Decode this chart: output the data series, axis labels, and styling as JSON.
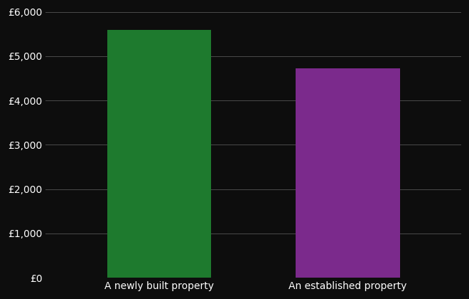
{
  "categories": [
    "A newly built property",
    "An established property"
  ],
  "values": [
    5600,
    4720
  ],
  "bar_colors": [
    "#1e7a2e",
    "#7b2a8c"
  ],
  "background_color": "#0d0d0d",
  "text_color": "#ffffff",
  "grid_color": "#4a4a4a",
  "ylim": [
    0,
    6000
  ],
  "yticks": [
    0,
    1000,
    2000,
    3000,
    4000,
    5000,
    6000
  ],
  "ytick_labels": [
    "£0",
    "£1,000",
    "£2,000",
    "£3,000",
    "£4,000",
    "£5,000",
    "£6,000"
  ],
  "x_positions": [
    1,
    2
  ],
  "bar_width": 0.55,
  "xlim": [
    0.4,
    2.6
  ],
  "figsize": [
    6.6,
    4.2
  ],
  "dpi": 100
}
